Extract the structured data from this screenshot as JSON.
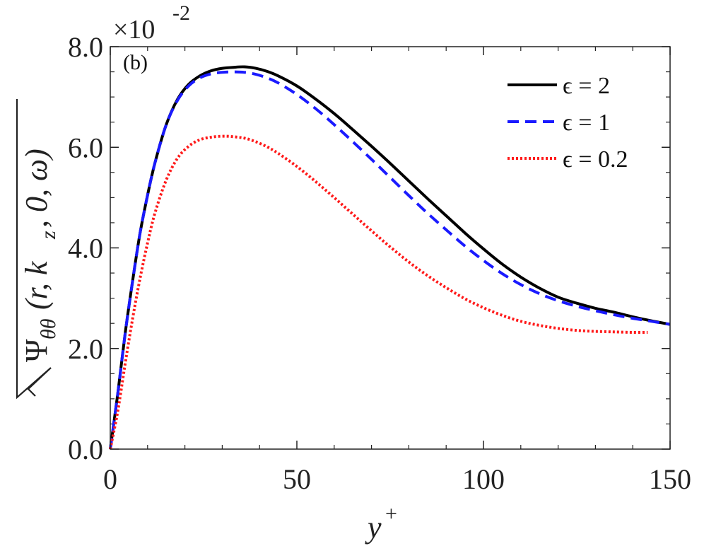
{
  "chart_data": {
    "type": "line",
    "panel_label": "(b)",
    "xlabel": "y",
    "xlabel_sup": "+",
    "ylabel": "√Ψθθ(r, kz, 0, ω)",
    "ylabel_parts": {
      "sym": "Ψ",
      "sub": "θθ",
      "open": "(r, k",
      "kz_sub": "z",
      "close": ", 0, ω)"
    },
    "y_multiplier": "×10",
    "y_multiplier_exp": "-2",
    "xlim": [
      0,
      150
    ],
    "ylim": [
      0,
      8
    ],
    "x_ticks": [
      0,
      50,
      100,
      150
    ],
    "x_tick_labels": [
      "0",
      "50",
      "100",
      "150"
    ],
    "y_ticks": [
      0,
      2,
      4,
      6,
      8
    ],
    "y_tick_labels": [
      "0.0",
      "2.0",
      "4.0",
      "6.0",
      "8.0"
    ],
    "legend_position": "top-right",
    "series": [
      {
        "name": "ϵ = 2",
        "color": "#000000",
        "style": "solid",
        "x": [
          0,
          2,
          4,
          6,
          8,
          10,
          12,
          15,
          18,
          21,
          24,
          27,
          30,
          33,
          36,
          39,
          42,
          45,
          50,
          55,
          60,
          65,
          70,
          75,
          80,
          85,
          90,
          95,
          100,
          105,
          110,
          115,
          120,
          125,
          130,
          135,
          140,
          145,
          150
        ],
        "values": [
          0.0,
          1.1,
          2.3,
          3.35,
          4.3,
          5.05,
          5.7,
          6.45,
          6.95,
          7.25,
          7.42,
          7.52,
          7.57,
          7.59,
          7.6,
          7.57,
          7.51,
          7.42,
          7.22,
          6.96,
          6.67,
          6.35,
          6.02,
          5.68,
          5.33,
          4.98,
          4.64,
          4.3,
          3.98,
          3.68,
          3.42,
          3.2,
          3.02,
          2.9,
          2.8,
          2.72,
          2.63,
          2.55,
          2.48
        ]
      },
      {
        "name": "ϵ = 1",
        "color": "#1a1aff",
        "style": "dashed",
        "x": [
          0,
          2,
          4,
          6,
          8,
          10,
          12,
          15,
          18,
          21,
          24,
          27,
          30,
          33,
          36,
          39,
          42,
          45,
          50,
          55,
          60,
          65,
          70,
          75,
          80,
          85,
          90,
          95,
          100,
          105,
          110,
          115,
          120,
          125,
          130,
          135,
          140,
          145,
          150
        ],
        "values": [
          0.0,
          1.1,
          2.3,
          3.35,
          4.3,
          5.05,
          5.7,
          6.45,
          6.93,
          7.22,
          7.38,
          7.46,
          7.49,
          7.5,
          7.49,
          7.45,
          7.38,
          7.28,
          7.05,
          6.77,
          6.45,
          6.11,
          5.76,
          5.4,
          5.04,
          4.69,
          4.36,
          4.04,
          3.75,
          3.49,
          3.27,
          3.09,
          2.95,
          2.84,
          2.75,
          2.67,
          2.6,
          2.54,
          2.48
        ]
      },
      {
        "name": "ϵ = 0.2",
        "color": "#ff1a1a",
        "style": "dotted",
        "x": [
          0,
          2,
          4,
          6,
          8,
          10,
          12,
          15,
          18,
          21,
          24,
          27,
          30,
          33,
          36,
          39,
          42,
          45,
          50,
          55,
          60,
          65,
          70,
          75,
          80,
          85,
          90,
          95,
          100,
          105,
          110,
          115,
          120,
          125,
          130,
          135,
          140,
          144
        ],
        "values": [
          0.0,
          0.75,
          1.7,
          2.6,
          3.4,
          4.1,
          4.7,
          5.35,
          5.78,
          6.02,
          6.15,
          6.2,
          6.22,
          6.21,
          6.18,
          6.11,
          6.01,
          5.88,
          5.62,
          5.32,
          5.0,
          4.67,
          4.34,
          4.02,
          3.72,
          3.45,
          3.21,
          2.99,
          2.81,
          2.66,
          2.54,
          2.46,
          2.4,
          2.36,
          2.34,
          2.33,
          2.32,
          2.32
        ]
      }
    ]
  }
}
